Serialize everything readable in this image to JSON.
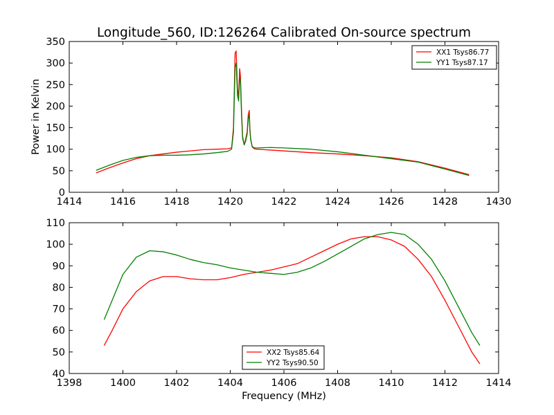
{
  "chart_data": {
    "title": "Longitude_560, ID:126264 Calibrated On-source spectrum",
    "colors": {
      "red": "#ff0000",
      "green": "#008000"
    },
    "panels": [
      {
        "type": "line",
        "xlabel": "",
        "ylabel": "Power in Kelvin",
        "xlim": [
          1414,
          1430
        ],
        "ylim": [
          0,
          350
        ],
        "xticks": [
          "1414",
          "1416",
          "1418",
          "1420",
          "1422",
          "1424",
          "1426",
          "1428",
          "1430"
        ],
        "yticks": [
          "0",
          "50",
          "100",
          "150",
          "200",
          "250",
          "300",
          "350"
        ],
        "legend_position": "upper-right",
        "grid": false,
        "series": [
          {
            "name": "XX1 Tsys86.77",
            "color": "#ff0000",
            "x": [
              1415.0,
              1415.5,
              1416.0,
              1416.5,
              1417.0,
              1417.5,
              1418.0,
              1418.5,
              1419.0,
              1419.5,
              1419.9,
              1420.05,
              1420.12,
              1420.18,
              1420.22,
              1420.27,
              1420.31,
              1420.35,
              1420.38,
              1420.42,
              1420.46,
              1420.52,
              1420.58,
              1420.63,
              1420.67,
              1420.71,
              1420.73,
              1420.76,
              1420.82,
              1420.9,
              1421.0,
              1421.5,
              1422.0,
              1423.0,
              1424.0,
              1425.0,
              1426.0,
              1427.0,
              1428.0,
              1428.9
            ],
            "y": [
              45,
              57,
              68,
              78,
              85,
              89,
              93,
              96,
              99,
              100,
              101,
              103,
              150,
              323,
              328,
              240,
              220,
              287,
              270,
              190,
              130,
              110,
              125,
              140,
              180,
              190,
              150,
              125,
              105,
              101,
              100,
              98,
              96,
              92,
              89,
              85,
              80,
              71,
              56,
              41
            ]
          },
          {
            "name": "YY1 Tsys87.17",
            "color": "#008000",
            "x": [
              1415.0,
              1415.5,
              1416.0,
              1416.5,
              1417.0,
              1417.5,
              1418.0,
              1418.5,
              1419.0,
              1419.5,
              1419.9,
              1420.05,
              1420.12,
              1420.18,
              1420.22,
              1420.27,
              1420.31,
              1420.35,
              1420.38,
              1420.42,
              1420.46,
              1420.52,
              1420.58,
              1420.63,
              1420.67,
              1420.71,
              1420.73,
              1420.76,
              1420.82,
              1420.9,
              1421.0,
              1421.5,
              1422.0,
              1423.0,
              1424.0,
              1425.0,
              1426.0,
              1427.0,
              1428.0,
              1428.9
            ],
            "y": [
              51,
              63,
              74,
              81,
              85,
              86,
              86,
              87,
              89,
              92,
              95,
              100,
              140,
              290,
              300,
              225,
              212,
              268,
              255,
              180,
              125,
              110,
              120,
              135,
              170,
              180,
              145,
              122,
              106,
              103,
              103,
              104,
              103,
              100,
              94,
              86,
              78,
              70,
              54,
              39
            ]
          }
        ]
      },
      {
        "type": "line",
        "xlabel": "Frequency (MHz)",
        "ylabel": "",
        "xlim": [
          1398,
          1414
        ],
        "ylim": [
          40,
          110
        ],
        "xticks": [
          "1398",
          "1400",
          "1402",
          "1404",
          "1406",
          "1408",
          "1410",
          "1412",
          "1414"
        ],
        "yticks": [
          "40",
          "50",
          "60",
          "70",
          "80",
          "90",
          "100",
          "110"
        ],
        "legend_position": "lower-center",
        "grid": false,
        "series": [
          {
            "name": "XX2 Tsys85.64",
            "color": "#ff0000",
            "x": [
              1399.3,
              1399.6,
              1400.0,
              1400.5,
              1401.0,
              1401.5,
              1402.0,
              1402.5,
              1403.0,
              1403.5,
              1404.0,
              1404.5,
              1405.0,
              1405.5,
              1406.0,
              1406.5,
              1407.0,
              1407.5,
              1408.0,
              1408.5,
              1409.0,
              1409.5,
              1410.0,
              1410.5,
              1411.0,
              1411.5,
              1412.0,
              1412.5,
              1413.0,
              1413.3
            ],
            "y": [
              53,
              60,
              70,
              78,
              83,
              85,
              85,
              84,
              83.5,
              83.5,
              84.5,
              86,
              87,
              88,
              89.5,
              91,
              94,
              97,
              100,
              102.5,
              103.5,
              103.5,
              102,
              99,
              93,
              85,
              74,
              62,
              50,
              44.5
            ]
          },
          {
            "name": "YY2 Tsys90.50",
            "color": "#008000",
            "x": [
              1399.3,
              1399.6,
              1400.0,
              1400.5,
              1401.0,
              1401.5,
              1402.0,
              1402.5,
              1403.0,
              1403.5,
              1404.0,
              1404.5,
              1405.0,
              1405.5,
              1406.0,
              1406.5,
              1407.0,
              1407.5,
              1408.0,
              1408.5,
              1409.0,
              1409.5,
              1410.0,
              1410.5,
              1411.0,
              1411.5,
              1412.0,
              1412.5,
              1413.0,
              1413.3
            ],
            "y": [
              65,
              74,
              86,
              94,
              97,
              96.5,
              95,
              93,
              91.5,
              90.5,
              89,
              88,
              87,
              86.5,
              86,
              87,
              89,
              92,
              95.5,
              99,
              102.5,
              104.5,
              105.5,
              104.5,
              100,
              93,
              83,
              71,
              59,
              53
            ]
          }
        ]
      }
    ]
  }
}
